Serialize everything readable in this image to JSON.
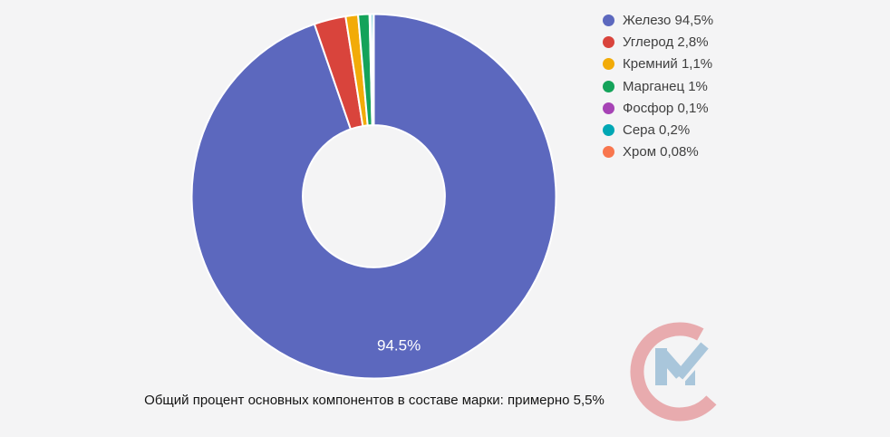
{
  "page": {
    "background": "#f4f4f5"
  },
  "chart_data": {
    "type": "pie",
    "style": "donut",
    "title": "",
    "direction": "clockwise",
    "start_angle": "top",
    "inner_radius_ratio": 0.39,
    "border_color": "#ffffff",
    "legend_position": "right",
    "categories": [
      "Железо",
      "Углерод",
      "Кремний",
      "Марганец",
      "Фосфор",
      "Сера",
      "Хром"
    ],
    "keys": [
      "iron",
      "carbon",
      "silicon",
      "manganese",
      "phosphorus",
      "sulfur",
      "chromium"
    ],
    "values": [
      94.5,
      2.8,
      1.1,
      1,
      0.1,
      0.2,
      0.08
    ],
    "colors": [
      "#5c68be",
      "#d9443c",
      "#f2ab08",
      "#14a35a",
      "#a643b5",
      "#00a7b4",
      "#f8764e"
    ],
    "slice_labels": [
      {
        "index": 0,
        "text": "94.5%",
        "color": "#ffffff"
      }
    ]
  },
  "legend": {
    "text_color": "#404040",
    "items": [
      {
        "key": "iron",
        "label": "Железо 94,5%",
        "color": "#5c68be"
      },
      {
        "key": "carbon",
        "label": "Углерод 2,8%",
        "color": "#d9443c"
      },
      {
        "key": "silicon",
        "label": "Кремний 1,1%",
        "color": "#f2ab08"
      },
      {
        "key": "manganese",
        "label": "Марганец 1%",
        "color": "#14a35a"
      },
      {
        "key": "phosphorus",
        "label": "Фосфор 0,1%",
        "color": "#a643b5"
      },
      {
        "key": "sulfur",
        "label": "Сера 0,2%",
        "color": "#00a7b4"
      },
      {
        "key": "chromium",
        "label": "Хром 0,08%",
        "color": "#f8764e"
      }
    ]
  },
  "caption": {
    "text": "Общий процент основных компонентов в составе марки: примерно 5,5%"
  },
  "logo": {
    "icon": "cm-watermark-icon",
    "c_color": "#e8abae",
    "m_color": "#a9c6db"
  }
}
